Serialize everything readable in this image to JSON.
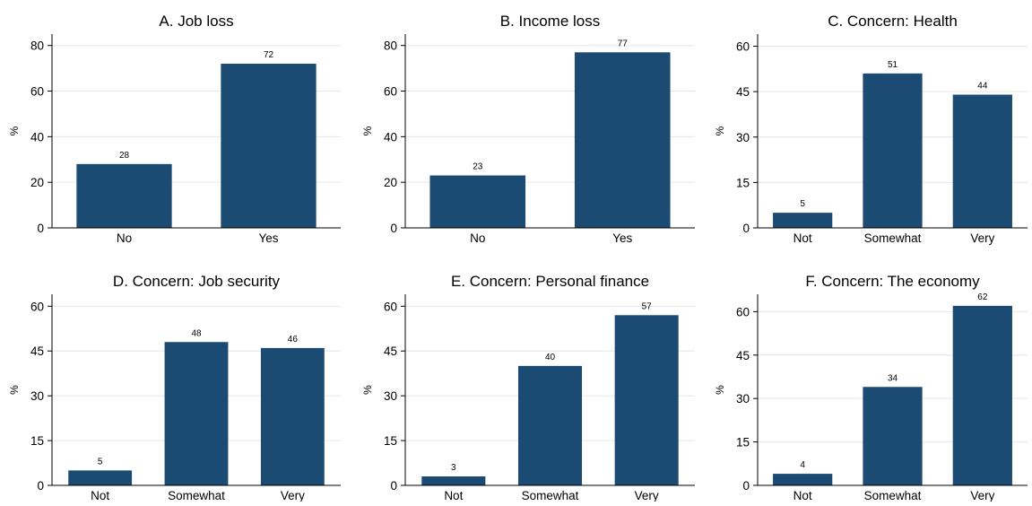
{
  "colors": {
    "bar": "#1b4a72",
    "grid": "#e6e6e6",
    "axis": "#000000",
    "background": "#ffffff"
  },
  "chart_data": [
    {
      "type": "bar",
      "title": "A. Job loss",
      "ylabel": "%",
      "categories": [
        "No",
        "Yes"
      ],
      "values": [
        28,
        72
      ],
      "ylim": [
        0,
        85
      ],
      "yticks": [
        0,
        20,
        40,
        60,
        80
      ],
      "grid": true
    },
    {
      "type": "bar",
      "title": "B. Income loss",
      "ylabel": "%",
      "categories": [
        "No",
        "Yes"
      ],
      "values": [
        23,
        77
      ],
      "ylim": [
        0,
        85
      ],
      "yticks": [
        0,
        20,
        40,
        60,
        80
      ],
      "grid": true
    },
    {
      "type": "bar",
      "title": "C. Concern: Health",
      "ylabel": "%",
      "categories": [
        "Not",
        "Somewhat",
        "Very"
      ],
      "values": [
        5,
        51,
        44
      ],
      "ylim": [
        0,
        64
      ],
      "yticks": [
        0,
        15,
        30,
        45,
        60
      ],
      "grid": true
    },
    {
      "type": "bar",
      "title": "D. Concern: Job security",
      "ylabel": "%",
      "categories": [
        "Not",
        "Somewhat",
        "Very"
      ],
      "values": [
        5,
        48,
        46
      ],
      "ylim": [
        0,
        64
      ],
      "yticks": [
        0,
        15,
        30,
        45,
        60
      ],
      "grid": true
    },
    {
      "type": "bar",
      "title": "E. Concern: Personal finance",
      "ylabel": "%",
      "categories": [
        "Not",
        "Somewhat",
        "Very"
      ],
      "values": [
        3,
        40,
        57
      ],
      "ylim": [
        0,
        64
      ],
      "yticks": [
        0,
        15,
        30,
        45,
        60
      ],
      "grid": true
    },
    {
      "type": "bar",
      "title": "F. Concern: The economy",
      "ylabel": "%",
      "categories": [
        "Not",
        "Somewhat",
        "Very"
      ],
      "values": [
        4,
        34,
        62
      ],
      "ylim": [
        0,
        66
      ],
      "yticks": [
        0,
        15,
        30,
        45,
        60
      ],
      "grid": true
    }
  ]
}
